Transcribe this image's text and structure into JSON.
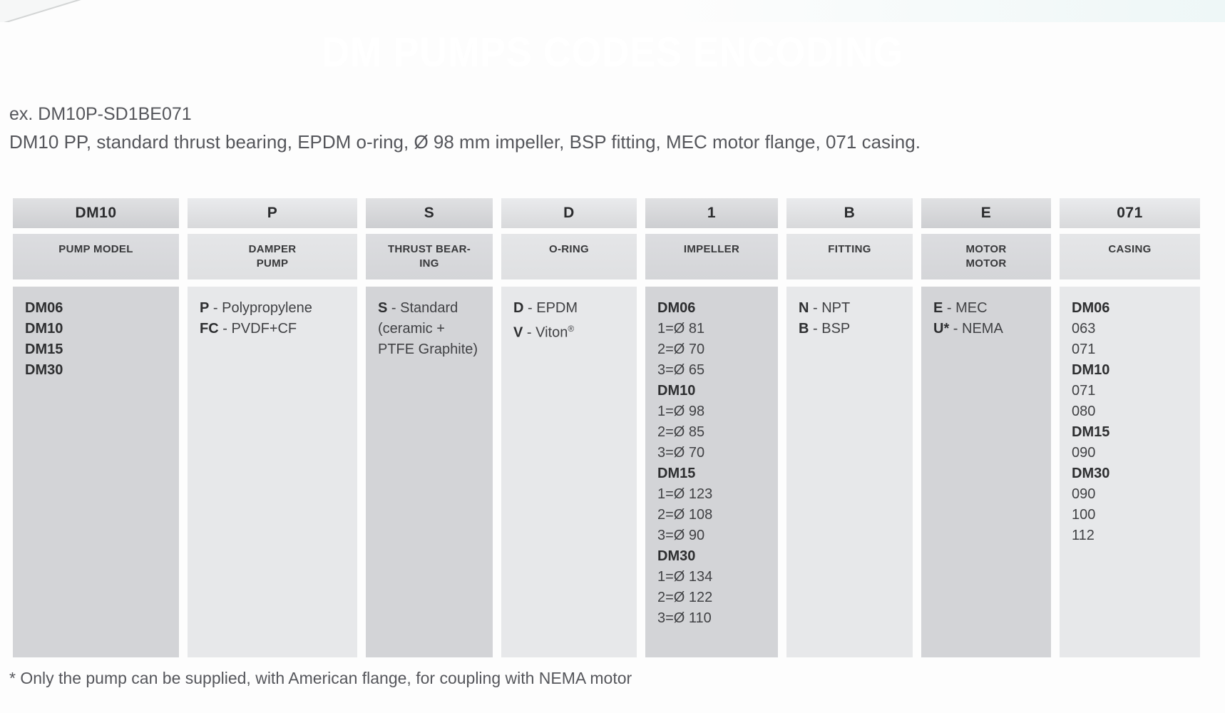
{
  "page": {
    "title": "DM PUMPS CODES ENCODING",
    "example_label": "ex. DM10P-SD1BE071",
    "example_description": "DM10 PP, standard thrust bearing, EPDM o-ring, Ø 98 mm impeller, BSP fitting, MEC motor flange, 071 casing.",
    "footnote": "* Only the pump can be supplied, with American flange, for coupling with NEMA motor"
  },
  "colors": {
    "banner_teal": "#066a71",
    "column_dark": "#d3d4d7",
    "column_light": "#e7e8ea",
    "text_dark": "#2d2e30",
    "text_muted": "#55565b"
  },
  "table": {
    "columns": [
      {
        "key": "pump-model",
        "code": "DM10",
        "label_lines": [
          "PUMP MODEL"
        ],
        "lines": [
          {
            "bold": "DM06"
          },
          {
            "bold": "DM10"
          },
          {
            "bold": "DM15"
          },
          {
            "bold": "DM30"
          }
        ]
      },
      {
        "key": "damper-pump",
        "code": "P",
        "label_lines": [
          "DAMPER",
          "PUMP"
        ],
        "lines": [
          {
            "code": "P",
            "text": "Polypropylene"
          },
          {
            "code": "FC",
            "text": "PVDF+CF"
          }
        ]
      },
      {
        "key": "thrust-bearing",
        "code": "S",
        "label_lines": [
          "THRUST BEAR-",
          "ING"
        ],
        "lines": [
          {
            "code": "S",
            "text": "Standard"
          },
          {
            "text": "(ceramic +"
          },
          {
            "text": "PTFE Graphite)"
          }
        ]
      },
      {
        "key": "o-ring",
        "code": "D",
        "label_lines": [
          "O-RING"
        ],
        "lines": [
          {
            "code": "D",
            "text": "EPDM"
          },
          {
            "code": "V",
            "text": "Viton",
            "sup": "®"
          }
        ]
      },
      {
        "key": "impeller",
        "code": "1",
        "label_lines": [
          "IMPELLER"
        ],
        "lines": [
          {
            "bold": "DM06"
          },
          {
            "text": "1=Ø 81"
          },
          {
            "text": "2=Ø 70"
          },
          {
            "text": "3=Ø 65"
          },
          {
            "bold": "DM10"
          },
          {
            "text": "1=Ø 98"
          },
          {
            "text": "2=Ø 85"
          },
          {
            "text": "3=Ø 70"
          },
          {
            "bold": "DM15"
          },
          {
            "text": "1=Ø 123"
          },
          {
            "text": "2=Ø 108"
          },
          {
            "text": "3=Ø 90"
          },
          {
            "bold": "DM30"
          },
          {
            "text": "1=Ø 134"
          },
          {
            "text": "2=Ø 122"
          },
          {
            "text": "3=Ø 110"
          }
        ]
      },
      {
        "key": "fitting",
        "code": "B",
        "label_lines": [
          "FITTING"
        ],
        "lines": [
          {
            "code": "N",
            "text": "NPT"
          },
          {
            "code": "B",
            "text": "BSP"
          }
        ]
      },
      {
        "key": "motor",
        "code": "E",
        "label_lines": [
          "MOTOR",
          "MOTOR"
        ],
        "lines": [
          {
            "code": "E",
            "text": "MEC"
          },
          {
            "code": "U*",
            "text": "NEMA"
          }
        ]
      },
      {
        "key": "casing",
        "code": "071",
        "label_lines": [
          "CASING"
        ],
        "lines": [
          {
            "bold": "DM06"
          },
          {
            "text": "063"
          },
          {
            "text": "071"
          },
          {
            "bold": "DM10"
          },
          {
            "text": "071"
          },
          {
            "text": "080"
          },
          {
            "bold": "DM15"
          },
          {
            "text": "090"
          },
          {
            "bold": "DM30"
          },
          {
            "text": "090"
          },
          {
            "text": "100"
          },
          {
            "text": "112"
          }
        ]
      }
    ]
  }
}
